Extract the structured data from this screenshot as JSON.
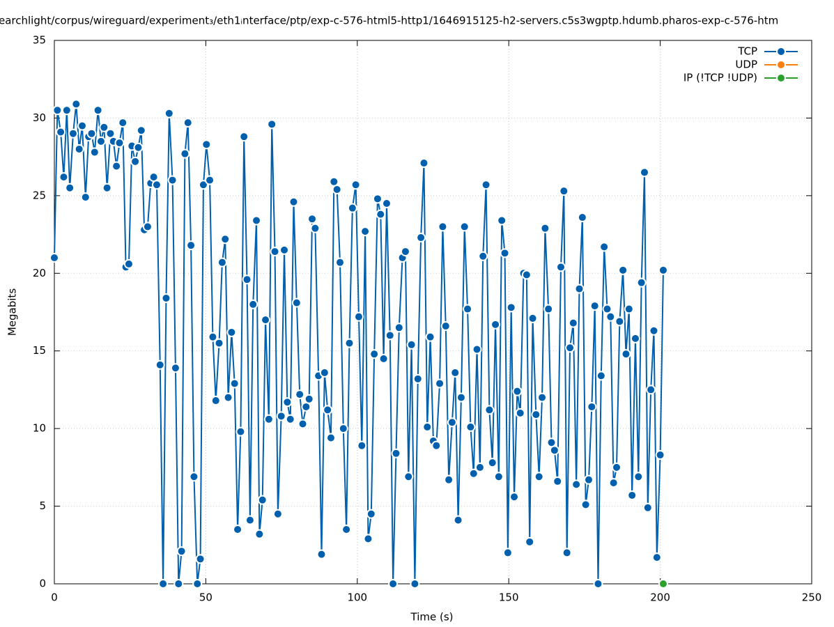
{
  "chart_data": {
    "type": "line",
    "title": "earchlight/corpus/wireguard/experiment₃/eth1ᵢnterface/ptp/exp-c-576-html5-http1/1646915125-h2-servers.c5s3wgptp.hdumb.pharos-exp-c-576-htm",
    "x_label": "Time (s)",
    "y_label": "Megabits",
    "xlim": [
      0,
      250
    ],
    "xticks": [
      0,
      50,
      100,
      150,
      200,
      250
    ],
    "ylim": [
      0,
      35
    ],
    "yticks": [
      0,
      5,
      10,
      15,
      20,
      25,
      30,
      35
    ],
    "grid": true,
    "legend": "top-right",
    "series": [
      {
        "name": "TCP",
        "color": "#0060ad",
        "x": [
          0,
          1.0,
          2.1,
          3.1,
          4.1,
          5.1,
          6.2,
          7.2,
          8.2,
          9.2,
          10.3,
          11.3,
          12.3,
          13.3,
          14.4,
          15.4,
          16.4,
          17.4,
          18.5,
          19.5,
          20.5,
          21.5,
          22.6,
          23.6,
          24.6,
          25.6,
          26.7,
          27.7,
          28.7,
          29.7,
          30.8,
          31.8,
          32.8,
          33.8,
          34.9,
          35.9,
          36.9,
          37.9,
          39.0,
          40.0,
          41.0,
          42.0,
          43.1,
          44.1,
          45.1,
          46.1,
          47.2,
          48.2,
          49.2,
          50.2,
          51.3,
          52.3,
          53.3,
          54.4,
          55.4,
          56.4,
          57.4,
          58.5,
          59.5,
          60.5,
          61.5,
          62.6,
          63.6,
          64.6,
          65.6,
          66.7,
          67.7,
          68.7,
          69.7,
          70.8,
          71.8,
          72.8,
          73.8,
          74.9,
          75.9,
          76.9,
          77.9,
          79.0,
          80.0,
          81.0,
          82.0,
          83.1,
          84.1,
          85.1,
          86.1,
          87.2,
          88.2,
          89.2,
          90.2,
          91.3,
          92.3,
          93.3,
          94.3,
          95.4,
          96.4,
          97.4,
          98.4,
          99.5,
          100.5,
          101.5,
          102.6,
          103.6,
          104.6,
          105.6,
          106.7,
          107.7,
          108.7,
          109.7,
          110.8,
          111.8,
          112.8,
          113.8,
          114.9,
          115.9,
          116.9,
          117.9,
          119.0,
          120.0,
          121.0,
          122.0,
          123.1,
          124.1,
          125.1,
          126.1,
          127.2,
          128.2,
          129.2,
          130.2,
          131.3,
          132.3,
          133.3,
          134.3,
          135.4,
          136.4,
          137.4,
          138.4,
          139.5,
          140.5,
          141.5,
          142.5,
          143.6,
          144.6,
          145.6,
          146.7,
          147.7,
          148.7,
          149.7,
          150.8,
          151.8,
          152.8,
          153.8,
          154.9,
          155.9,
          156.9,
          157.9,
          159.0,
          160.0,
          161.0,
          162.0,
          163.1,
          164.1,
          165.1,
          166.1,
          167.2,
          168.2,
          169.2,
          170.2,
          171.3,
          172.3,
          173.3,
          174.3,
          175.4,
          176.4,
          177.4,
          178.4,
          179.5,
          180.5,
          181.5,
          182.5,
          183.6,
          184.6,
          185.6,
          186.6,
          187.7,
          188.7,
          189.7,
          190.7,
          191.8,
          192.8,
          193.8,
          194.8,
          195.9,
          196.9,
          197.9,
          198.9,
          200.0,
          201.0
        ],
        "values": [
          21.0,
          30.5,
          29.1,
          26.2,
          30.5,
          25.5,
          29.0,
          30.9,
          28.0,
          29.5,
          24.9,
          28.8,
          29.0,
          27.8,
          30.5,
          28.5,
          29.4,
          25.5,
          29.0,
          28.5,
          26.9,
          28.4,
          29.7,
          20.4,
          20.6,
          28.2,
          27.2,
          28.1,
          29.2,
          22.8,
          23.0,
          25.8,
          26.2,
          25.7,
          14.1,
          0,
          18.4,
          30.3,
          26.0,
          13.9,
          0,
          2.1,
          27.7,
          29.7,
          21.8,
          6.9,
          0,
          1.6,
          25.7,
          28.3,
          26.0,
          15.9,
          11.8,
          15.5,
          20.7,
          22.2,
          12.0,
          16.2,
          12.9,
          3.5,
          9.8,
          28.8,
          19.6,
          4.1,
          18.0,
          23.4,
          3.2,
          5.4,
          17.0,
          10.6,
          29.6,
          21.4,
          4.5,
          10.8,
          21.5,
          11.7,
          10.6,
          24.6,
          18.1,
          12.2,
          10.3,
          11.4,
          11.9,
          23.5,
          22.9,
          13.4,
          1.9,
          13.6,
          11.2,
          9.4,
          25.9,
          25.4,
          20.7,
          10.0,
          3.5,
          15.5,
          24.2,
          25.7,
          17.2,
          8.9,
          22.7,
          2.9,
          4.5,
          14.8,
          24.8,
          23.8,
          14.5,
          24.5,
          16.0,
          0,
          8.4,
          16.5,
          21.0,
          21.4,
          6.9,
          15.4,
          0,
          13.2,
          22.3,
          27.1,
          10.1,
          15.9,
          9.2,
          8.9,
          12.9,
          23.0,
          16.6,
          6.7,
          10.4,
          13.6,
          4.1,
          12.0,
          23.0,
          17.7,
          10.1,
          7.1,
          15.1,
          7.5,
          21.1,
          25.7,
          11.2,
          7.8,
          16.7,
          6.9,
          23.4,
          21.3,
          2.0,
          17.8,
          5.6,
          12.4,
          11.0,
          20.0,
          19.9,
          2.7,
          17.1,
          10.9,
          6.9,
          12.0,
          22.9,
          17.7,
          9.1,
          8.6,
          6.6,
          20.4,
          25.3,
          2.0,
          15.2,
          16.8,
          6.4,
          19.0,
          23.6,
          5.1,
          6.7,
          11.4,
          17.9,
          0,
          13.4,
          21.7,
          17.7,
          17.2,
          6.5,
          7.5,
          16.9,
          20.2,
          14.8,
          17.7,
          5.7,
          15.8,
          6.9,
          19.4,
          26.5,
          4.9,
          12.5,
          16.3,
          1.7,
          8.3,
          20.2
        ]
      },
      {
        "name": "UDP",
        "color": "#ff7f0e",
        "x": [],
        "values": []
      },
      {
        "name": "IP (!TCP  !UDP)",
        "color": "#2ca02c",
        "x": [
          201.0
        ],
        "values": [
          0
        ]
      }
    ]
  }
}
